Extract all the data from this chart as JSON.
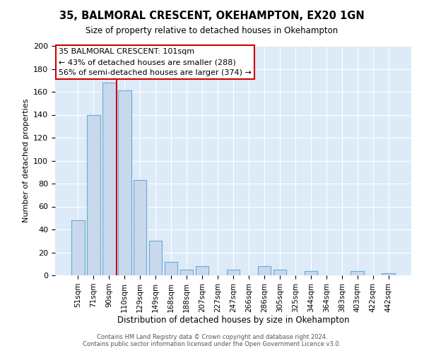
{
  "title": "35, BALMORAL CRESCENT, OKEHAMPTON, EX20 1GN",
  "subtitle": "Size of property relative to detached houses in Okehampton",
  "xlabel": "Distribution of detached houses by size in Okehampton",
  "ylabel": "Number of detached properties",
  "bar_labels": [
    "51sqm",
    "71sqm",
    "90sqm",
    "110sqm",
    "129sqm",
    "149sqm",
    "168sqm",
    "188sqm",
    "207sqm",
    "227sqm",
    "247sqm",
    "266sqm",
    "286sqm",
    "305sqm",
    "325sqm",
    "344sqm",
    "364sqm",
    "383sqm",
    "403sqm",
    "422sqm",
    "442sqm"
  ],
  "bar_values": [
    48,
    140,
    168,
    161,
    83,
    30,
    12,
    5,
    8,
    0,
    5,
    0,
    8,
    5,
    0,
    4,
    0,
    0,
    4,
    0,
    2
  ],
  "bar_color": "#c8d9ed",
  "bar_edge_color": "#6aaad4",
  "vline_color": "#cc0000",
  "ylim": [
    0,
    200
  ],
  "yticks": [
    0,
    20,
    40,
    60,
    80,
    100,
    120,
    140,
    160,
    180,
    200
  ],
  "annotation_title": "35 BALMORAL CRESCENT: 101sqm",
  "annotation_line1": "← 43% of detached houses are smaller (288)",
  "annotation_line2": "56% of semi-detached houses are larger (374) →",
  "annotation_box_color": "#ffffff",
  "annotation_box_edge": "#cc0000",
  "footer1": "Contains HM Land Registry data © Crown copyright and database right 2024.",
  "footer2": "Contains public sector information licensed under the Open Government Licence v3.0.",
  "fig_bg_color": "#ffffff",
  "plot_bg_color": "#ddeaf7"
}
